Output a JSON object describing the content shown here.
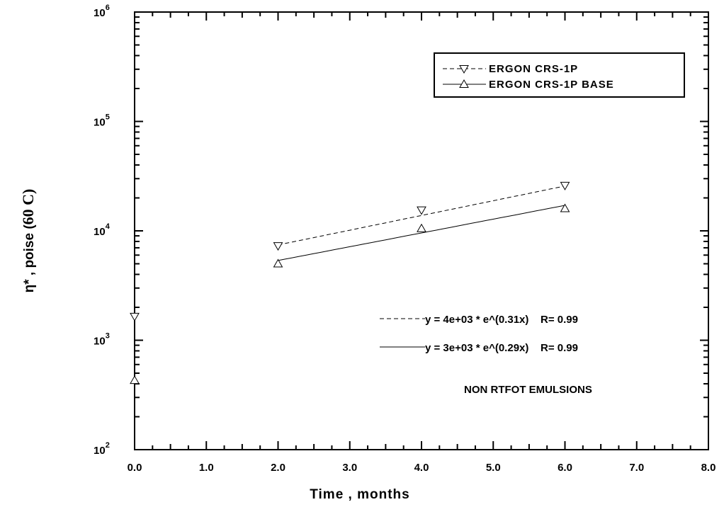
{
  "chart_data": {
    "type": "scatter",
    "xlabel": "Time , months",
    "ylabel_prefix": "η* , poise (",
    "ylabel_suffix": "60 C)",
    "xlim": [
      0,
      8
    ],
    "ylim": [
      100,
      1000000
    ],
    "yscale": "log",
    "x_ticks": [
      0,
      1,
      2,
      3,
      4,
      5,
      6,
      7,
      8
    ],
    "x_tick_labels": [
      "0.0",
      "1.0",
      "2.0",
      "3.0",
      "4.0",
      "5.0",
      "6.0",
      "7.0",
      "8.0"
    ],
    "y_ticks": [
      100,
      1000,
      10000,
      100000,
      1000000
    ],
    "y_tick_labels": [
      {
        "base": "10",
        "exp": "2"
      },
      {
        "base": "10",
        "exp": "3"
      },
      {
        "base": "10",
        "exp": "4"
      },
      {
        "base": "10",
        "exp": "5"
      },
      {
        "base": "10",
        "exp": "6"
      }
    ],
    "grid": false,
    "legend_position": "top-right",
    "series": [
      {
        "name": "ERGON CRS-1P",
        "marker": "triangle-down",
        "line_style": "dashed",
        "x": [
          0,
          2,
          4,
          6
        ],
        "y": [
          1650,
          7300,
          15500,
          26000
        ],
        "fit": {
          "a": 4000,
          "b": 0.31,
          "x_range": [
            2,
            6
          ]
        }
      },
      {
        "name": "ERGON CRS-1P BASE",
        "marker": "triangle-up",
        "line_style": "solid",
        "x": [
          0,
          2,
          4,
          6
        ],
        "y": [
          430,
          5000,
          10500,
          16000
        ],
        "fit": {
          "a": 3000,
          "b": 0.29,
          "x_range": [
            2,
            6
          ]
        }
      }
    ],
    "annotations": [
      {
        "text": "y = 4e+03 * e^(0.31x)    R= 0.99",
        "line_style": "dashed"
      },
      {
        "text": "y = 3e+03 * e^(0.29x)    R= 0.99",
        "line_style": "solid"
      },
      {
        "text": "NON RTFOT EMULSIONS"
      }
    ]
  }
}
